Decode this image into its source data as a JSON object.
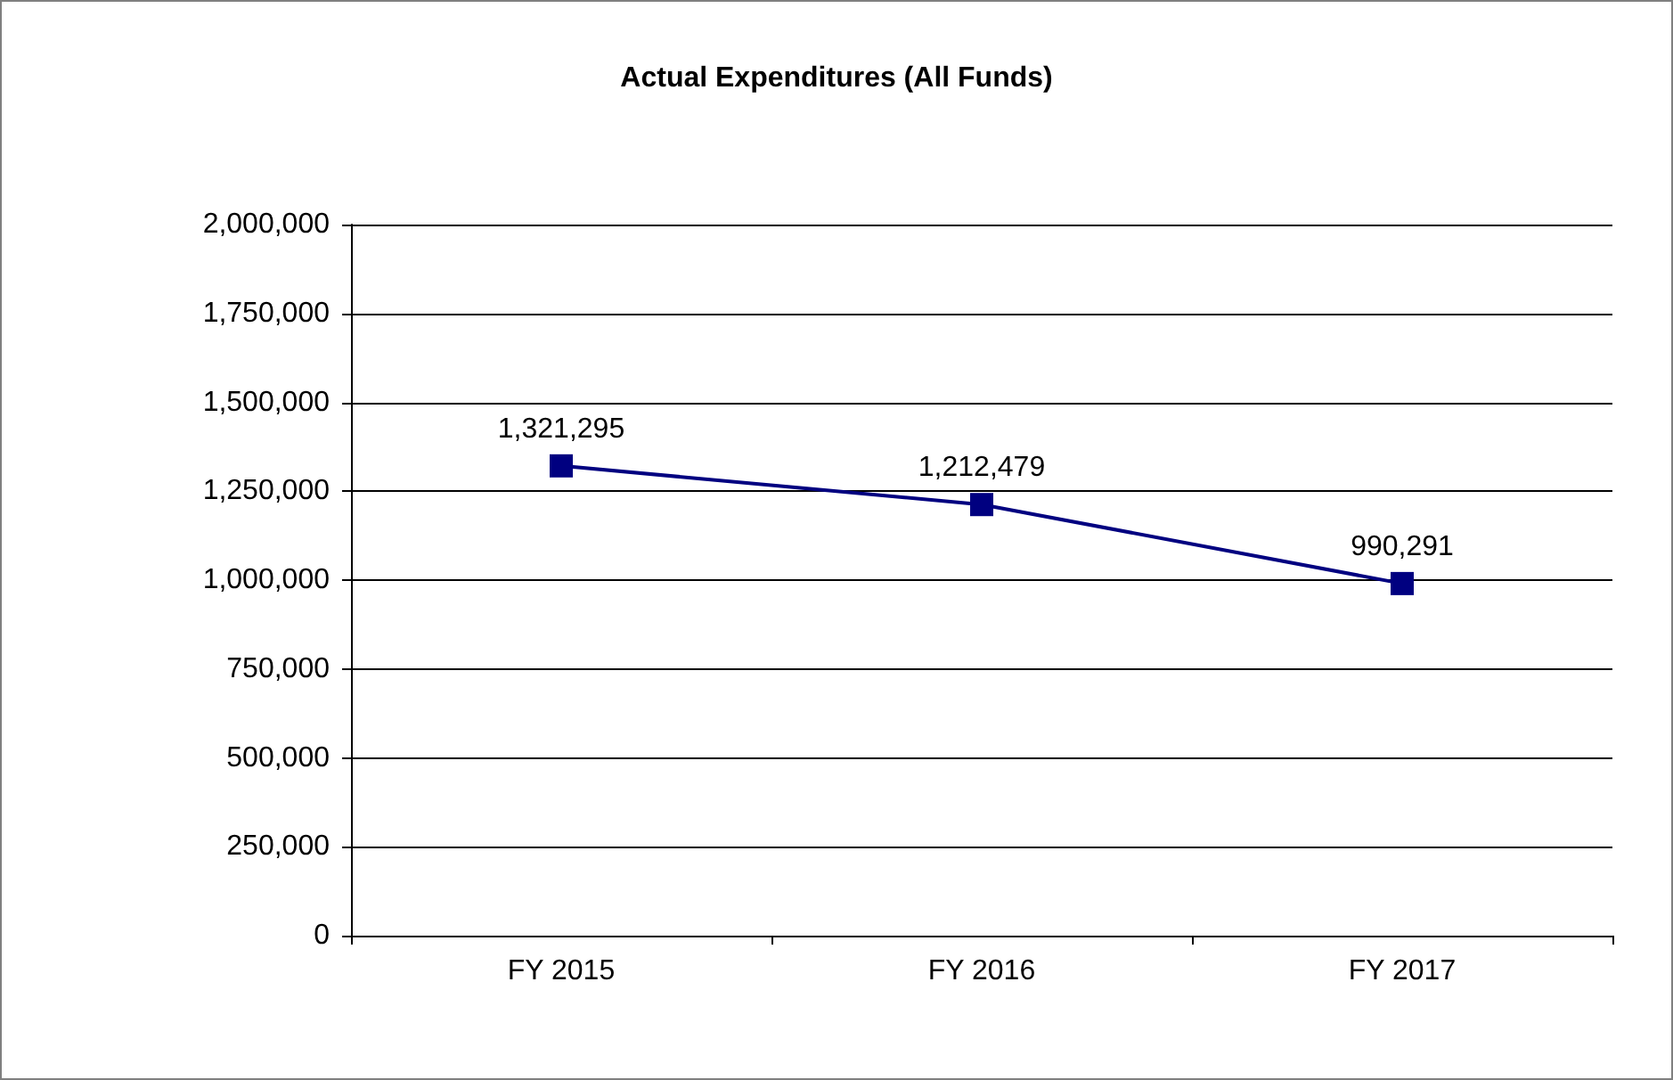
{
  "chart_data": {
    "type": "line",
    "title": "Actual Expenditures (All Funds)",
    "categories": [
      "FY 2015",
      "FY 2016",
      "FY 2017"
    ],
    "series": [
      {
        "color": "#000080",
        "values": [
          1321295,
          1212479,
          990291
        ],
        "value_labels": [
          "1,321,295",
          "1,212,479",
          "990,291"
        ]
      }
    ],
    "ylim": [
      0,
      2000000
    ],
    "yticks": [
      0,
      {
        "value": 250000,
        "label": "250,000"
      },
      {
        "value": 500000,
        "label": "500,000"
      },
      {
        "value": 750000,
        "label": "750,000"
      },
      {
        "value": 1000000,
        "label": "1,000,000"
      },
      {
        "value": 1250000,
        "label": "1,250,000"
      },
      {
        "value": 1500000,
        "label": "1,500,000"
      },
      {
        "value": 1750000,
        "label": "1,750,000"
      },
      {
        "value": 2000000,
        "label": "2,000,000"
      }
    ],
    "grid": "y",
    "marker": "square",
    "line_style": "solid"
  }
}
